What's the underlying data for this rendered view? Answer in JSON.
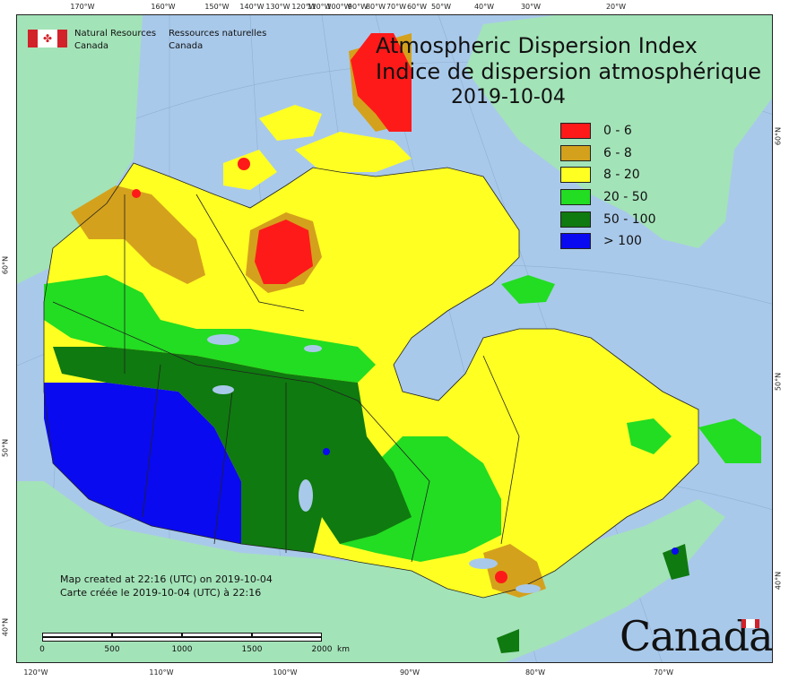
{
  "map": {
    "title_en": "Atmospheric Dispersion Index",
    "title_fr": "Indice de dispersion atmosphérique",
    "date": "2019-10-04",
    "legend": [
      {
        "label": "0 - 6",
        "color": "#ff1a1a"
      },
      {
        "label": "6 - 8",
        "color": "#d4a11c"
      },
      {
        "label": "8 - 20",
        "color": "#ffff22"
      },
      {
        "label": "20 - 50",
        "color": "#22dd22"
      },
      {
        "label": "50 - 100",
        "color": "#0f7a0f"
      },
      {
        "label": "> 100",
        "color": "#0a0af0"
      }
    ],
    "agency": {
      "en_line1": "Natural Resources",
      "en_line2": "Canada",
      "fr_line1": "Ressources naturelles",
      "fr_line2": "Canada"
    },
    "credits": {
      "line1": "Map created at 22:16 (UTC) on 2019-10-04",
      "line2": "Carte créée le 2019-10-04 (UTC) à 22:16"
    },
    "scale": {
      "labels": [
        "0",
        "500",
        "1000",
        "1500",
        "2000"
      ],
      "unit": "km"
    },
    "wordmark": "Canada",
    "top_ticks": [
      "170°W",
      "160°W",
      "150°W",
      "140°W",
      "130°W",
      "120°W",
      "110°W",
      "100°W",
      "90°W",
      "80°W",
      "70°W",
      "60°W",
      "50°W",
      "40°W",
      "30°W",
      "20°W"
    ],
    "bottom_ticks": [
      "120°W",
      "110°W",
      "100°W",
      "90°W",
      "80°W",
      "70°W"
    ],
    "left_ticks": [
      "60°N",
      "50°N",
      "40°N"
    ],
    "right_ticks": [
      "60°N",
      "50°N",
      "40°N"
    ],
    "colors": {
      "ocean": "#a9c9ea",
      "land_outside": "#a3e3b8",
      "border": "#222222"
    }
  }
}
